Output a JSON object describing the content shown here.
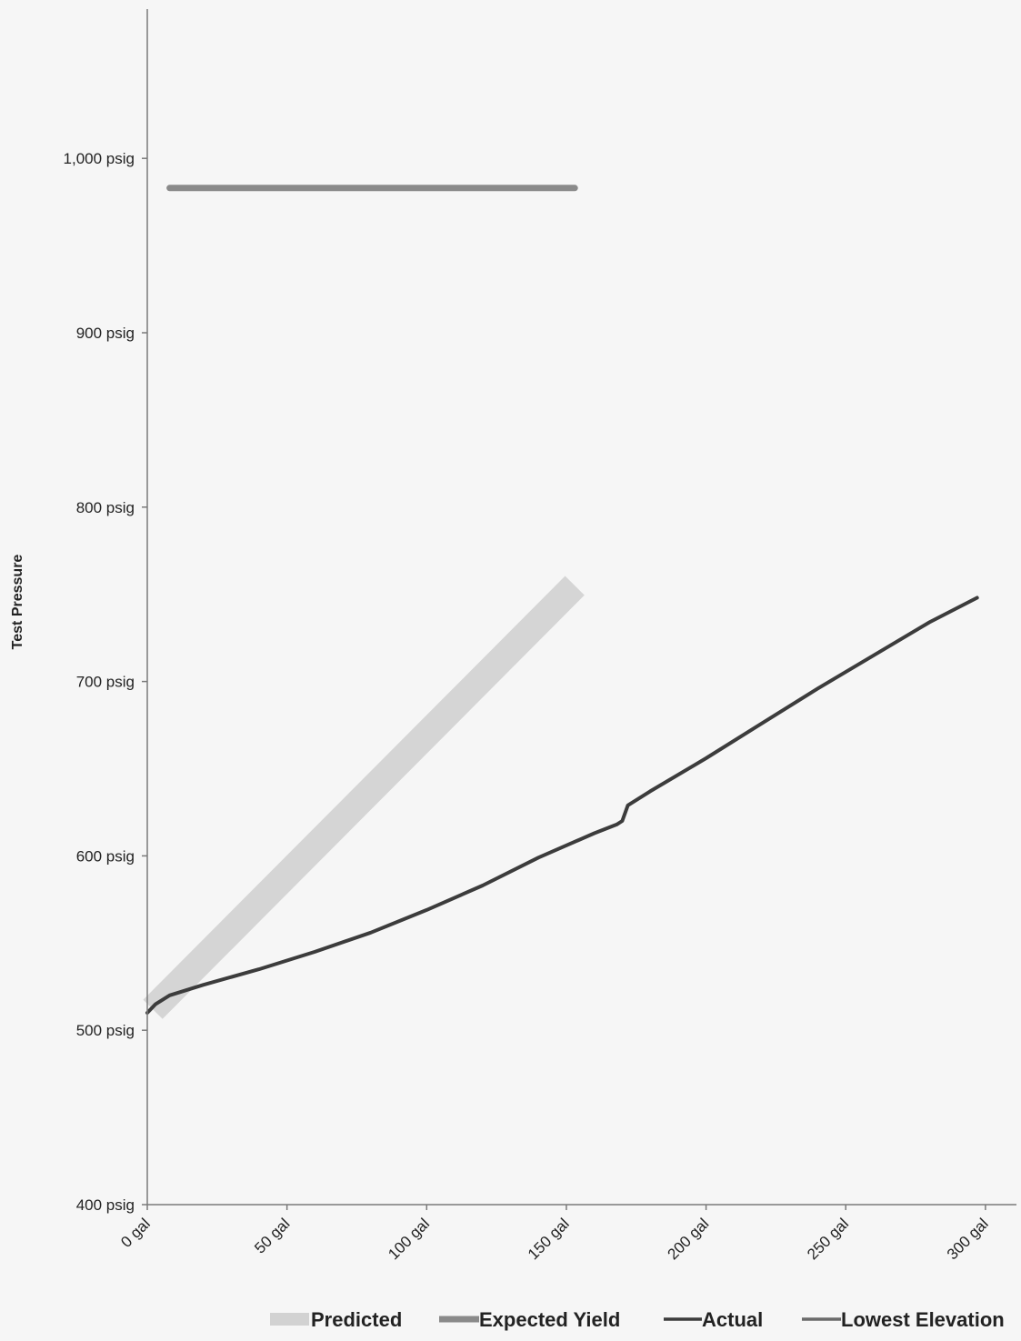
{
  "colors": {
    "predicted": "#d2d2d2",
    "expected_yield": "#8a8a8a",
    "actual": "#3c3c3c",
    "lowest_elevation": "#6a6a6a",
    "axis": "#7a7a7a",
    "text": "#222222"
  },
  "chart_data": {
    "type": "line",
    "title": "",
    "xlabel": "",
    "ylabel": "Test Pressure",
    "xlim": [
      0,
      310
    ],
    "ylim": [
      400,
      1085
    ],
    "x_ticks": [
      0,
      50,
      100,
      150,
      200,
      250,
      300
    ],
    "x_tick_labels": [
      "0 gal",
      "50 gal",
      "100 gal",
      "150 gal",
      "200 gal",
      "250 gal",
      "300 gal"
    ],
    "y_ticks": [
      400,
      500,
      600,
      700,
      800,
      900,
      1000
    ],
    "y_tick_labels": [
      "400 psig",
      "500 psig",
      "600 psig",
      "700 psig",
      "800 psig",
      "900 psig",
      "1,000 psig"
    ],
    "grid": false,
    "legend_position": "bottom",
    "series": [
      {
        "name": "Predicted",
        "style": "band",
        "x": [
          2,
          153
        ],
        "y": [
          512,
          755
        ]
      },
      {
        "name": "Expected Yield",
        "style": "line",
        "x": [
          8,
          153
        ],
        "y": [
          983,
          983
        ]
      },
      {
        "name": "Actual",
        "style": "line",
        "x": [
          0,
          3,
          8,
          20,
          40,
          60,
          80,
          100,
          120,
          140,
          160,
          168,
          170,
          172,
          180,
          200,
          220,
          240,
          260,
          280,
          297
        ],
        "y": [
          510,
          515,
          520,
          526,
          535,
          545,
          556,
          569,
          583,
          599,
          613,
          618,
          620,
          629,
          637,
          656,
          676,
          696,
          715,
          734,
          748
        ]
      },
      {
        "name": "Lowest Elevation",
        "style": "line",
        "x": [],
        "y": []
      }
    ]
  }
}
